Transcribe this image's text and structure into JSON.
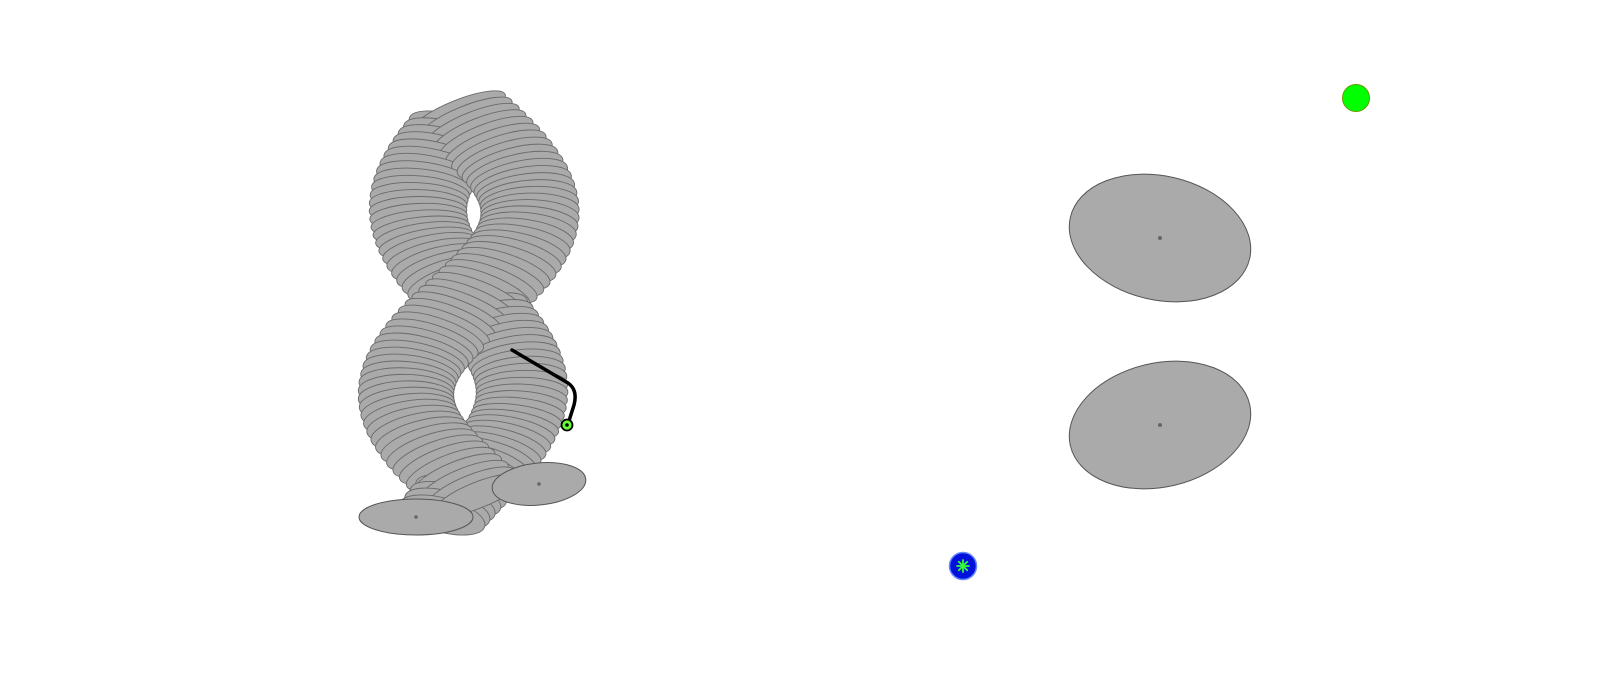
{
  "scene": {
    "background": "#ffffff",
    "shape_fill": "#aaaaaa",
    "shape_stroke": "#555555",
    "slice_stroke": "#6a6a6a",
    "center_dot_color": "#666666"
  },
  "twist_sculpture": {
    "slice_count": 60,
    "strand_count": 2
  },
  "tether": {
    "line_color": "#000000",
    "handle_fill": "#66ff33",
    "handle_ring": "#000000"
  },
  "cross_sections": {
    "count": 2
  },
  "controls": {
    "start_button": {
      "fill": "#00ff00",
      "stroke": "#669900"
    },
    "reset_button": {
      "fill": "#0011dd",
      "stroke": "#6688ff",
      "icon_color": "#33ff33",
      "icon": "asterisk-icon"
    }
  }
}
